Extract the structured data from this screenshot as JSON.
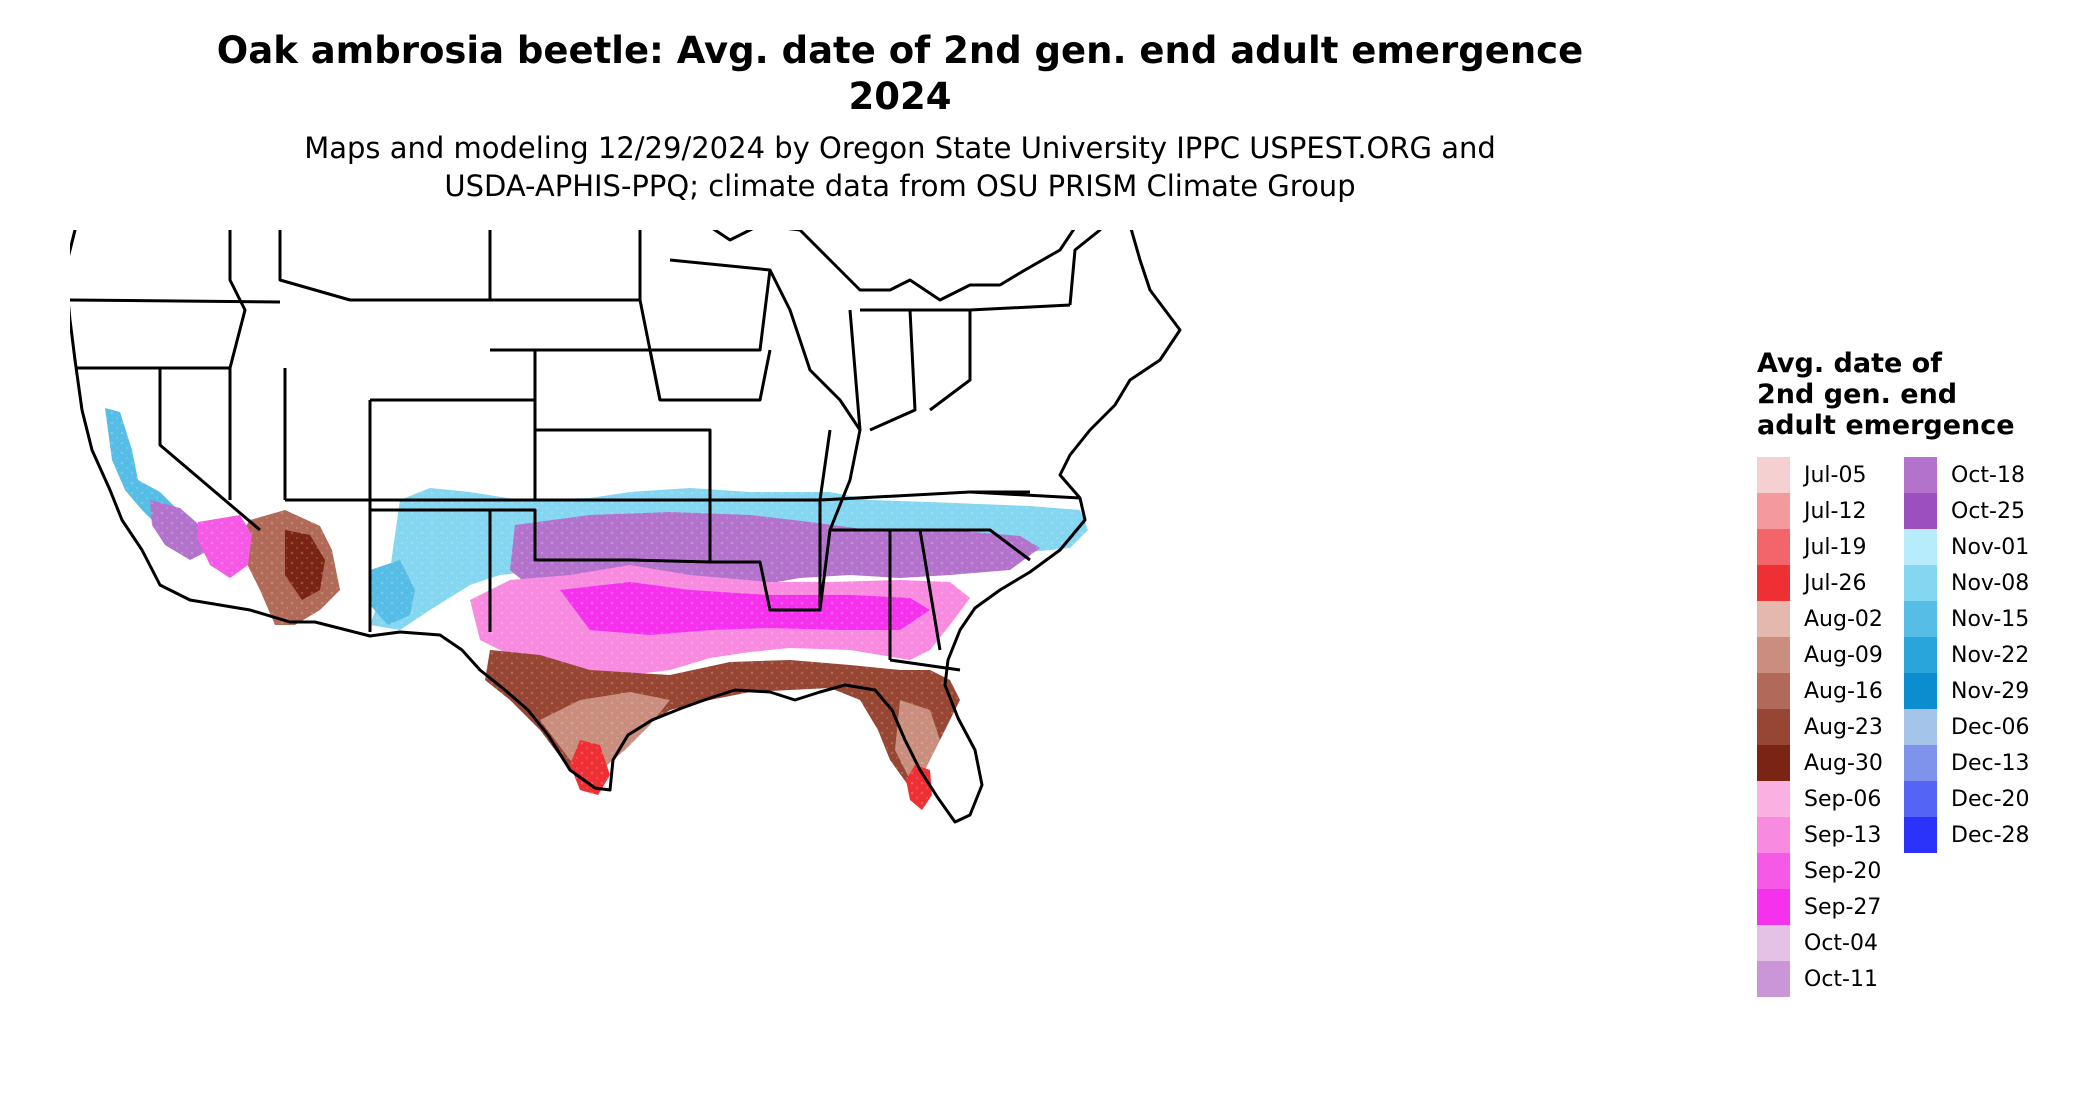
{
  "title": "Oak ambrosia beetle: Avg. date of 2nd gen. end adult emergence\n2024",
  "subtitle": "Maps and modeling 12/29/2024 by Oregon State University IPPC USPEST.ORG and\nUSDA-APHIS-PPQ; climate data from OSU PRISM Climate Group",
  "legend": {
    "title": "Avg. date of\n2nd gen. end\nadult emergence",
    "items": [
      {
        "label": "Jul-05",
        "color": "#f6cfd1"
      },
      {
        "label": "Jul-12",
        "color": "#f49a9c"
      },
      {
        "label": "Jul-19",
        "color": "#f26669"
      },
      {
        "label": "Jul-26",
        "color": "#ee3034"
      },
      {
        "label": "Aug-02",
        "color": "#e5b8ad"
      },
      {
        "label": "Aug-09",
        "color": "#c98e7e"
      },
      {
        "label": "Aug-16",
        "color": "#b06a57"
      },
      {
        "label": "Aug-23",
        "color": "#974634"
      },
      {
        "label": "Aug-30",
        "color": "#7a2513"
      },
      {
        "label": "Sep-06",
        "color": "#f9b1e1"
      },
      {
        "label": "Sep-13",
        "color": "#f88ae0"
      },
      {
        "label": "Sep-20",
        "color": "#f559e5"
      },
      {
        "label": "Sep-27",
        "color": "#f531ee"
      },
      {
        "label": "Oct-04",
        "color": "#e4c2e6"
      },
      {
        "label": "Oct-11",
        "color": "#cb96d8"
      },
      {
        "label": "Oct-18",
        "color": "#b373cd"
      },
      {
        "label": "Oct-25",
        "color": "#9c4fbf"
      },
      {
        "label": "Nov-01",
        "color": "#b7ecfc"
      },
      {
        "label": "Nov-08",
        "color": "#85d6f0"
      },
      {
        "label": "Nov-15",
        "color": "#56bde6"
      },
      {
        "label": "Nov-22",
        "color": "#2aa5dc"
      },
      {
        "label": "Nov-29",
        "color": "#0b8dd0"
      },
      {
        "label": "Dec-06",
        "color": "#a5c4ea"
      },
      {
        "label": "Dec-13",
        "color": "#7f93ec"
      },
      {
        "label": "Dec-20",
        "color": "#5464f4"
      },
      {
        "label": "Dec-28",
        "color": "#2b33fa"
      }
    ]
  }
}
